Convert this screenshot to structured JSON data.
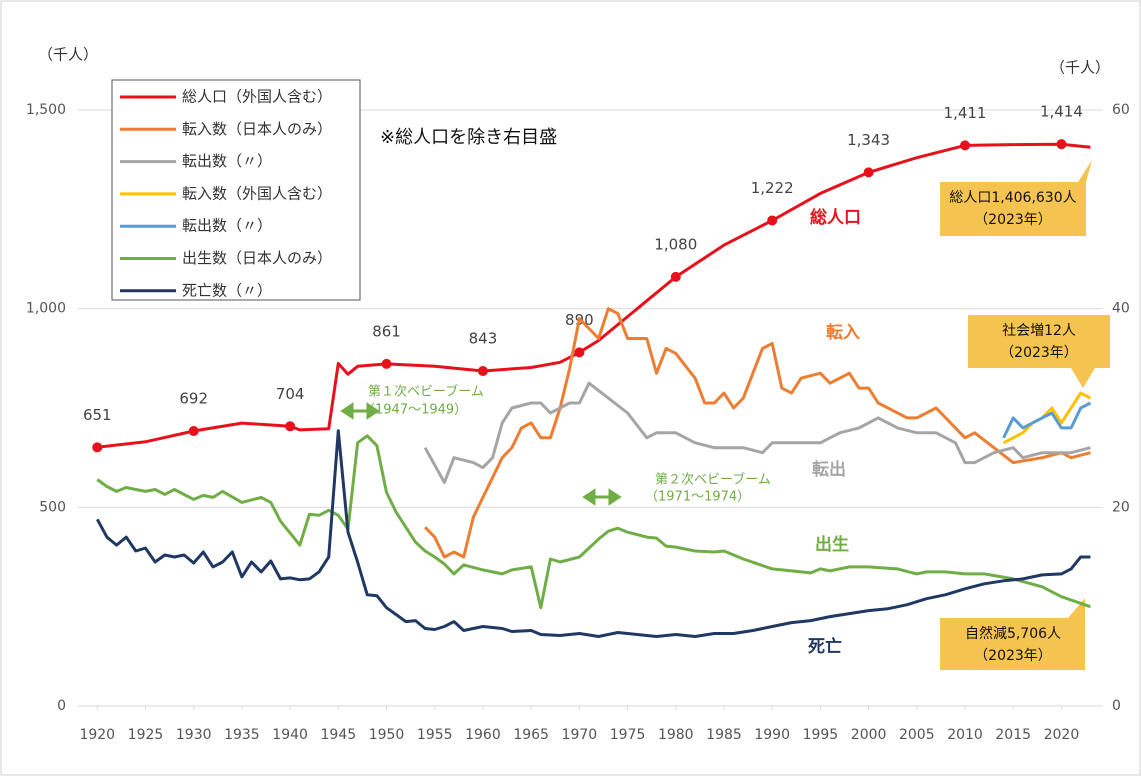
{
  "chart_data": {
    "type": "line",
    "left_axis_label": "（千人）",
    "right_axis_label": "（千人）",
    "note": "※総人口を除き右目盛",
    "xlim": [
      1918,
      2024
    ],
    "xticks": [
      1920,
      1925,
      1930,
      1935,
      1940,
      1945,
      1950,
      1955,
      1960,
      1965,
      1970,
      1975,
      1980,
      1985,
      1990,
      1995,
      2000,
      2005,
      2010,
      2015,
      2020
    ],
    "ylim": [
      0,
      1500
    ],
    "yticks": [
      0,
      500,
      {
        "value": 1000,
        "label": "1,000"
      },
      {
        "value": 1500,
        "label": "1,500"
      }
    ],
    "y2lim": [
      0,
      60
    ],
    "y2ticks": [
      0,
      20,
      40,
      60
    ],
    "grid": true,
    "series": [
      {
        "name": "総人口（外国人含む）",
        "color": "#e8101a",
        "axis": "y",
        "x": [
          1920,
          1925,
          1930,
          1935,
          1940,
          1941,
          1944,
          1945,
          1946,
          1947,
          1950,
          1955,
          1960,
          1965,
          1968,
          1970,
          1972,
          1975,
          1980,
          1985,
          1990,
          1995,
          2000,
          2005,
          2010,
          2015,
          2020,
          2023
        ],
        "values": [
          651,
          665,
          692,
          712,
          704,
          695,
          698,
          862,
          835,
          855,
          861,
          855,
          843,
          852,
          865,
          890,
          920,
          980,
          1080,
          1160,
          1222,
          1290,
          1343,
          1380,
          1411,
          1413,
          1414,
          1406
        ],
        "value_labels": [
          "651",
          null,
          "692",
          null,
          "704",
          null,
          null,
          null,
          null,
          null,
          "861",
          null,
          "843",
          null,
          null,
          "890",
          null,
          null,
          "1,080",
          null,
          "1,222",
          null,
          "1,343",
          null,
          "1,411",
          null,
          "1,414",
          null
        ]
      },
      {
        "name": "転入数（日本人のみ）",
        "color": "#ed7d31",
        "axis": "y2",
        "x": [
          1954,
          1955,
          1956,
          1957,
          1958,
          1959,
          1960,
          1961,
          1962,
          1963,
          1964,
          1965,
          1966,
          1967,
          1968,
          1969,
          1970,
          1971,
          1972,
          1973,
          1974,
          1975,
          1977,
          1978,
          1979,
          1980,
          1982,
          1983,
          1984,
          1985,
          1986,
          1987,
          1989,
          1990,
          1991,
          1992,
          1993,
          1995,
          1996,
          1998,
          1999,
          2000,
          2001,
          2004,
          2005,
          2007,
          2010,
          2011,
          2013,
          2015,
          2018,
          2020,
          2021,
          2023
        ],
        "values": [
          18,
          17,
          15,
          15.5,
          15,
          19,
          21,
          23,
          25,
          26,
          28,
          28.5,
          27,
          27,
          30,
          34,
          39,
          38,
          37,
          40,
          39.5,
          37,
          37,
          33.5,
          36,
          35.5,
          33,
          30.5,
          30.5,
          31.5,
          30,
          31,
          36,
          36.5,
          32,
          31.5,
          33,
          33.5,
          32.5,
          33.5,
          32,
          32,
          30.5,
          29,
          29,
          30,
          27,
          27.5,
          26,
          24.5,
          25,
          25.5,
          25,
          25.5
        ]
      },
      {
        "name": "転出数（〃）",
        "color": "#a5a5a5",
        "axis": "y2",
        "x": [
          1954,
          1956,
          1957,
          1959,
          1960,
          1961,
          1962,
          1963,
          1965,
          1966,
          1967,
          1969,
          1970,
          1971,
          1973,
          1975,
          1977,
          1978,
          1980,
          1982,
          1984,
          1987,
          1989,
          1990,
          1992,
          1995,
          1997,
          1999,
          2001,
          2003,
          2005,
          2007,
          2009,
          2010,
          2011,
          2013,
          2015,
          2016,
          2018,
          2020,
          2021,
          2023
        ],
        "values": [
          26,
          22.5,
          25,
          24.5,
          24,
          25,
          28.5,
          30,
          30.5,
          30.5,
          29.5,
          30.5,
          30.5,
          32.5,
          31,
          29.5,
          27,
          27.5,
          27.5,
          26.5,
          26,
          26,
          25.5,
          26.5,
          26.5,
          26.5,
          27.5,
          28,
          29,
          28,
          27.5,
          27.5,
          26.5,
          24.5,
          24.5,
          25.5,
          26,
          25,
          25.5,
          25.5,
          25.5,
          26
        ]
      },
      {
        "name": "転入数（外国人含む）",
        "color": "#ffc000",
        "axis": "y2",
        "x": [
          2014,
          2015,
          2016,
          2017,
          2018,
          2019,
          2020,
          2021,
          2022,
          2023
        ],
        "values": [
          26.5,
          27,
          27.5,
          28.5,
          29,
          30,
          28.5,
          30,
          31.5,
          31
        ]
      },
      {
        "name": "転出数（〃）",
        "color": "#5b9bd5",
        "axis": "y2",
        "x": [
          2014,
          2015,
          2016,
          2017,
          2018,
          2019,
          2020,
          2021,
          2022,
          2023
        ],
        "values": [
          27,
          29,
          28,
          28.5,
          29,
          29.5,
          28,
          28,
          30,
          30.5
        ]
      },
      {
        "name": "出生数（日本人のみ）",
        "color": "#70ad47",
        "axis": "y2",
        "x": [
          1920,
          1921,
          1922,
          1923,
          1924,
          1925,
          1926,
          1927,
          1928,
          1930,
          1931,
          1932,
          1933,
          1935,
          1937,
          1938,
          1939,
          1941,
          1942,
          1943,
          1944,
          1945,
          1946,
          1947,
          1948,
          1949,
          1950,
          1951,
          1952,
          1953,
          1954,
          1955,
          1956,
          1957,
          1958,
          1960,
          1962,
          1963,
          1965,
          1966,
          1967,
          1968,
          1970,
          1972,
          1973,
          1974,
          1975,
          1977,
          1978,
          1979,
          1980,
          1982,
          1984,
          1985,
          1987,
          1990,
          1992,
          1994,
          1995,
          1996,
          1998,
          2000,
          2003,
          2005,
          2006,
          2008,
          2010,
          2012,
          2015,
          2018,
          2020,
          2023
        ],
        "values": [
          22.8,
          22.1,
          21.6,
          22,
          21.8,
          21.6,
          21.8,
          21.3,
          21.8,
          20.8,
          21.2,
          21,
          21.6,
          20.5,
          21,
          20.5,
          18.6,
          16.2,
          19.3,
          19.2,
          19.7,
          19.2,
          17.8,
          26.5,
          27.2,
          26.2,
          21.5,
          19.5,
          18,
          16.5,
          15.6,
          15,
          14.3,
          13.3,
          14.2,
          13.7,
          13.3,
          13.7,
          14,
          9.9,
          14.8,
          14.5,
          15,
          16.8,
          17.6,
          17.9,
          17.5,
          17,
          16.9,
          16.1,
          16,
          15.6,
          15.5,
          15.6,
          14.8,
          13.8,
          13.6,
          13.4,
          13.8,
          13.6,
          14,
          14,
          13.8,
          13.3,
          13.5,
          13.5,
          13.3,
          13.3,
          12.8,
          12,
          11,
          10
        ]
      },
      {
        "name": "死亡数（〃）",
        "color": "#203864",
        "axis": "y2",
        "x": [
          1920,
          1921,
          1922,
          1923,
          1924,
          1925,
          1926,
          1927,
          1928,
          1929,
          1930,
          1931,
          1932,
          1933,
          1934,
          1935,
          1936,
          1937,
          1938,
          1939,
          1940,
          1941,
          1942,
          1943,
          1944,
          1945,
          1946,
          1947,
          1948,
          1949,
          1950,
          1951,
          1952,
          1953,
          1954,
          1955,
          1956,
          1957,
          1958,
          1960,
          1962,
          1963,
          1965,
          1966,
          1968,
          1970,
          1972,
          1974,
          1976,
          1978,
          1980,
          1982,
          1984,
          1986,
          1988,
          1990,
          1992,
          1994,
          1996,
          1998,
          2000,
          2002,
          2004,
          2006,
          2008,
          2010,
          2012,
          2014,
          2016,
          2018,
          2020,
          2021,
          2022,
          2023
        ],
        "values": [
          18.8,
          17,
          16.2,
          17,
          15.6,
          15.9,
          14.5,
          15.2,
          15,
          15.2,
          14.4,
          15.5,
          14,
          14.5,
          15.5,
          13,
          14.5,
          13.5,
          14.6,
          12.8,
          12.9,
          12.7,
          12.8,
          13.5,
          15,
          27.7,
          17.5,
          14.5,
          11.2,
          11.1,
          9.9,
          9.2,
          8.5,
          8.6,
          7.8,
          7.7,
          8,
          8.5,
          7.6,
          8,
          7.8,
          7.5,
          7.6,
          7.2,
          7.1,
          7.3,
          7,
          7.4,
          7.2,
          7,
          7.2,
          7,
          7.3,
          7.3,
          7.6,
          8,
          8.4,
          8.6,
          9,
          9.3,
          9.6,
          9.8,
          10.2,
          10.8,
          11.2,
          11.8,
          12.3,
          12.6,
          12.8,
          13.2,
          13.3,
          13.8,
          15,
          15
        ]
      }
    ],
    "series_labels": [
      "総人口",
      "転入",
      "転出",
      "出生",
      "死亡"
    ],
    "baby_boom_1": [
      "第１次ベビーブーム",
      "（1947～1949）"
    ],
    "baby_boom_2": [
      "第２次ベビーブーム",
      "（1971～1974）"
    ],
    "callouts": [
      [
        "総人口1,406,630人",
        "（2023年）"
      ],
      [
        "社会増12人",
        "（2023年）"
      ],
      [
        "自然減5,706人",
        "（2023年）"
      ]
    ]
  }
}
